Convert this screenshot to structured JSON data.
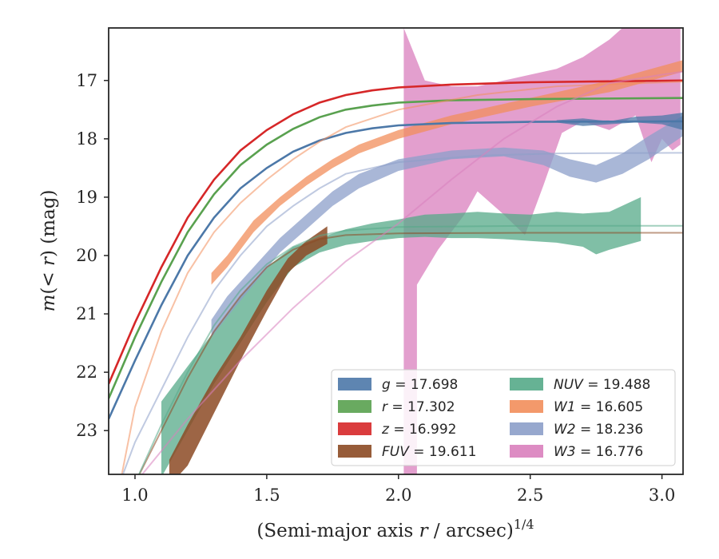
{
  "chart_data": {
    "type": "line",
    "xlabel": "(Semi-major axis r / arcsec)",
    "xlabel_italic": "r",
    "xlabel_exponent": "1/4",
    "ylabel": "m(< r) (mag)",
    "xlim": [
      0.9,
      3.08
    ],
    "ylim": [
      23.75,
      16.1
    ],
    "y_inverted": true,
    "xticks": [
      1.0,
      1.5,
      2.0,
      2.5,
      3.0
    ],
    "xtick_labels": [
      "1.0",
      "1.5",
      "2.0",
      "2.5",
      "3.0"
    ],
    "yticks": [
      17,
      18,
      19,
      20,
      21,
      22,
      23
    ],
    "ytick_labels": [
      "17",
      "18",
      "19",
      "20",
      "21",
      "22",
      "23"
    ],
    "grid": false,
    "legend_position": "bottom-right",
    "series": [
      {
        "band": "g",
        "legend": "g = 17.698",
        "color": "#4c78a8",
        "total_mag": 17.698,
        "model": [
          [
            0.9,
            22.8
          ],
          [
            1.0,
            21.8
          ],
          [
            1.1,
            20.85
          ],
          [
            1.2,
            20.0
          ],
          [
            1.3,
            19.35
          ],
          [
            1.4,
            18.85
          ],
          [
            1.5,
            18.5
          ],
          [
            1.6,
            18.22
          ],
          [
            1.7,
            18.03
          ],
          [
            1.8,
            17.9
          ],
          [
            1.9,
            17.82
          ],
          [
            2.0,
            17.77
          ],
          [
            2.2,
            17.73
          ],
          [
            2.5,
            17.71
          ],
          [
            3.08,
            17.7
          ]
        ],
        "band_lo": [
          [
            2.6,
            17.68
          ],
          [
            2.7,
            17.65
          ],
          [
            2.8,
            17.7
          ],
          [
            2.9,
            17.62
          ],
          [
            3.0,
            17.6
          ],
          [
            3.08,
            17.55
          ]
        ],
        "band_hi": [
          [
            2.6,
            17.72
          ],
          [
            2.7,
            17.78
          ],
          [
            2.8,
            17.75
          ],
          [
            2.9,
            17.72
          ],
          [
            3.0,
            17.75
          ],
          [
            3.08,
            17.85
          ]
        ]
      },
      {
        "band": "r",
        "legend": "r = 17.302",
        "color": "#59a14f",
        "total_mag": 17.302,
        "model": [
          [
            0.9,
            22.45
          ],
          [
            1.0,
            21.4
          ],
          [
            1.1,
            20.45
          ],
          [
            1.2,
            19.6
          ],
          [
            1.3,
            18.95
          ],
          [
            1.4,
            18.45
          ],
          [
            1.5,
            18.1
          ],
          [
            1.6,
            17.83
          ],
          [
            1.7,
            17.63
          ],
          [
            1.8,
            17.5
          ],
          [
            1.9,
            17.43
          ],
          [
            2.0,
            17.38
          ],
          [
            2.2,
            17.34
          ],
          [
            2.5,
            17.32
          ],
          [
            3.08,
            17.3
          ]
        ]
      },
      {
        "band": "z",
        "legend": "z = 16.992",
        "color": "#d62728",
        "total_mag": 16.992,
        "model": [
          [
            0.9,
            22.2
          ],
          [
            1.0,
            21.15
          ],
          [
            1.1,
            20.2
          ],
          [
            1.2,
            19.35
          ],
          [
            1.3,
            18.7
          ],
          [
            1.4,
            18.2
          ],
          [
            1.5,
            17.85
          ],
          [
            1.6,
            17.58
          ],
          [
            1.7,
            17.38
          ],
          [
            1.8,
            17.25
          ],
          [
            1.9,
            17.17
          ],
          [
            2.0,
            17.12
          ],
          [
            2.2,
            17.07
          ],
          [
            2.5,
            17.03
          ],
          [
            3.08,
            17.0
          ]
        ]
      },
      {
        "band": "FUV",
        "legend": "FUV = 19.611",
        "color": "#8c4a24",
        "total_mag": 19.611,
        "model": [
          [
            1.0,
            23.9
          ],
          [
            1.1,
            23.0
          ],
          [
            1.2,
            22.1
          ],
          [
            1.3,
            21.3
          ],
          [
            1.4,
            20.7
          ],
          [
            1.5,
            20.2
          ],
          [
            1.6,
            19.9
          ],
          [
            1.7,
            19.72
          ],
          [
            1.8,
            19.65
          ],
          [
            2.0,
            19.62
          ],
          [
            2.5,
            19.61
          ],
          [
            3.08,
            19.61
          ]
        ],
        "band_lo": [
          [
            1.13,
            23.5
          ],
          [
            1.2,
            22.9
          ],
          [
            1.3,
            22.1
          ],
          [
            1.4,
            21.4
          ],
          [
            1.5,
            20.6
          ],
          [
            1.58,
            20.05
          ],
          [
            1.65,
            19.75
          ],
          [
            1.73,
            19.5
          ]
        ],
        "band_hi": [
          [
            1.13,
            23.95
          ],
          [
            1.2,
            23.6
          ],
          [
            1.3,
            22.7
          ],
          [
            1.4,
            21.8
          ],
          [
            1.5,
            20.95
          ],
          [
            1.58,
            20.3
          ],
          [
            1.65,
            20.0
          ],
          [
            1.73,
            19.8
          ]
        ]
      },
      {
        "band": "NUV",
        "legend": "NUV = 19.488",
        "color": "#55aa88",
        "total_mag": 19.488,
        "model": [
          [
            1.0,
            23.9
          ],
          [
            1.1,
            22.9
          ],
          [
            1.2,
            22.0
          ],
          [
            1.3,
            21.2
          ],
          [
            1.4,
            20.6
          ],
          [
            1.5,
            20.15
          ],
          [
            1.6,
            19.85
          ],
          [
            1.7,
            19.66
          ],
          [
            1.8,
            19.57
          ],
          [
            2.0,
            19.51
          ],
          [
            2.5,
            19.49
          ],
          [
            3.08,
            19.49
          ]
        ],
        "band_lo": [
          [
            1.1,
            22.5
          ],
          [
            1.2,
            21.9
          ],
          [
            1.3,
            21.3
          ],
          [
            1.4,
            20.7
          ],
          [
            1.5,
            20.2
          ],
          [
            1.6,
            19.85
          ],
          [
            1.7,
            19.7
          ],
          [
            1.8,
            19.55
          ],
          [
            1.9,
            19.45
          ],
          [
            2.0,
            19.38
          ],
          [
            2.1,
            19.3
          ],
          [
            2.2,
            19.28
          ],
          [
            2.3,
            19.25
          ],
          [
            2.4,
            19.28
          ],
          [
            2.5,
            19.3
          ],
          [
            2.6,
            19.25
          ],
          [
            2.7,
            19.28
          ],
          [
            2.8,
            19.25
          ],
          [
            2.92,
            19.0
          ]
        ],
        "band_hi": [
          [
            1.1,
            23.8
          ],
          [
            1.2,
            23.0
          ],
          [
            1.3,
            22.2
          ],
          [
            1.4,
            21.5
          ],
          [
            1.5,
            20.8
          ],
          [
            1.6,
            20.2
          ],
          [
            1.7,
            19.95
          ],
          [
            1.8,
            19.82
          ],
          [
            1.9,
            19.75
          ],
          [
            2.0,
            19.7
          ],
          [
            2.1,
            19.68
          ],
          [
            2.2,
            19.7
          ],
          [
            2.3,
            19.7
          ],
          [
            2.4,
            19.72
          ],
          [
            2.5,
            19.75
          ],
          [
            2.6,
            19.78
          ],
          [
            2.7,
            19.85
          ],
          [
            2.75,
            19.98
          ],
          [
            2.8,
            19.9
          ],
          [
            2.92,
            19.75
          ]
        ]
      },
      {
        "band": "W1",
        "legend": "W1 = 16.605",
        "color": "#f28e5b",
        "total_mag": 16.605,
        "model": [
          [
            0.95,
            23.75
          ],
          [
            1.0,
            22.6
          ],
          [
            1.1,
            21.3
          ],
          [
            1.2,
            20.3
          ],
          [
            1.3,
            19.6
          ],
          [
            1.4,
            19.1
          ],
          [
            1.5,
            18.7
          ],
          [
            1.6,
            18.35
          ],
          [
            1.7,
            18.05
          ],
          [
            1.8,
            17.8
          ],
          [
            2.0,
            17.5
          ],
          [
            2.3,
            17.25
          ],
          [
            2.6,
            17.1
          ],
          [
            3.08,
            17.02
          ]
        ],
        "band_lo": [
          [
            1.29,
            20.3
          ],
          [
            1.35,
            20.0
          ],
          [
            1.45,
            19.4
          ],
          [
            1.55,
            19.0
          ],
          [
            1.65,
            18.65
          ],
          [
            1.75,
            18.35
          ],
          [
            1.85,
            18.1
          ],
          [
            2.0,
            17.85
          ],
          [
            2.2,
            17.6
          ],
          [
            2.5,
            17.3
          ],
          [
            2.8,
            17.0
          ],
          [
            3.08,
            16.65
          ]
        ],
        "band_hi": [
          [
            1.29,
            20.5
          ],
          [
            1.35,
            20.2
          ],
          [
            1.45,
            19.6
          ],
          [
            1.55,
            19.15
          ],
          [
            1.65,
            18.8
          ],
          [
            1.75,
            18.5
          ],
          [
            1.85,
            18.25
          ],
          [
            2.0,
            18.0
          ],
          [
            2.2,
            17.75
          ],
          [
            2.5,
            17.45
          ],
          [
            2.8,
            17.2
          ],
          [
            3.08,
            16.85
          ]
        ]
      },
      {
        "band": "W2",
        "legend": "W2 = 18.236",
        "color": "#8c9fc9",
        "total_mag": 18.236,
        "model": [
          [
            0.95,
            23.8
          ],
          [
            1.0,
            23.2
          ],
          [
            1.1,
            22.3
          ],
          [
            1.2,
            21.4
          ],
          [
            1.3,
            20.6
          ],
          [
            1.4,
            20.0
          ],
          [
            1.5,
            19.5
          ],
          [
            1.6,
            19.15
          ],
          [
            1.7,
            18.85
          ],
          [
            1.8,
            18.6
          ],
          [
            2.0,
            18.4
          ],
          [
            2.3,
            18.29
          ],
          [
            2.6,
            18.25
          ],
          [
            3.08,
            18.24
          ]
        ],
        "band_lo": [
          [
            1.29,
            21.1
          ],
          [
            1.35,
            20.7
          ],
          [
            1.45,
            20.2
          ],
          [
            1.55,
            19.7
          ],
          [
            1.65,
            19.3
          ],
          [
            1.75,
            18.9
          ],
          [
            1.85,
            18.6
          ],
          [
            2.0,
            18.35
          ],
          [
            2.2,
            18.2
          ],
          [
            2.4,
            18.15
          ],
          [
            2.55,
            18.2
          ],
          [
            2.65,
            18.35
          ],
          [
            2.75,
            18.45
          ],
          [
            2.85,
            18.25
          ],
          [
            2.95,
            17.95
          ],
          [
            3.08,
            17.6
          ]
        ],
        "band_hi": [
          [
            1.29,
            21.4
          ],
          [
            1.35,
            21.05
          ],
          [
            1.45,
            20.5
          ],
          [
            1.55,
            19.95
          ],
          [
            1.65,
            19.55
          ],
          [
            1.75,
            19.15
          ],
          [
            1.85,
            18.85
          ],
          [
            2.0,
            18.55
          ],
          [
            2.2,
            18.35
          ],
          [
            2.4,
            18.3
          ],
          [
            2.55,
            18.45
          ],
          [
            2.65,
            18.65
          ],
          [
            2.75,
            18.75
          ],
          [
            2.85,
            18.6
          ],
          [
            2.95,
            18.35
          ],
          [
            3.08,
            17.95
          ]
        ]
      },
      {
        "band": "W3",
        "legend": "W3 = 16.776",
        "color": "#d97fbd",
        "total_mag": 16.776,
        "model": [
          [
            1.0,
            23.9
          ],
          [
            1.2,
            22.8
          ],
          [
            1.4,
            21.8
          ],
          [
            1.6,
            20.9
          ],
          [
            1.8,
            20.1
          ],
          [
            2.0,
            19.45
          ],
          [
            2.2,
            18.7
          ],
          [
            2.4,
            18.0
          ],
          [
            2.6,
            17.45
          ],
          [
            2.8,
            17.05
          ],
          [
            3.0,
            16.9
          ],
          [
            3.08,
            16.85
          ]
        ],
        "band_lo": [
          [
            2.02,
            16.1
          ],
          [
            2.1,
            17.0
          ],
          [
            2.2,
            17.1
          ],
          [
            2.3,
            17.1
          ],
          [
            2.4,
            17.0
          ],
          [
            2.5,
            16.9
          ],
          [
            2.6,
            16.8
          ],
          [
            2.7,
            16.6
          ],
          [
            2.8,
            16.3
          ],
          [
            2.85,
            16.1
          ],
          [
            3.07,
            16.1
          ]
        ],
        "band_hi": [
          [
            2.02,
            23.8
          ],
          [
            2.07,
            23.8
          ],
          [
            2.07,
            20.5
          ],
          [
            2.15,
            19.9
          ],
          [
            2.25,
            19.3
          ],
          [
            2.3,
            18.9
          ],
          [
            2.4,
            19.3
          ],
          [
            2.48,
            19.65
          ],
          [
            2.55,
            18.8
          ],
          [
            2.62,
            17.9
          ],
          [
            2.7,
            17.7
          ],
          [
            2.8,
            17.85
          ],
          [
            2.9,
            17.6
          ],
          [
            2.96,
            18.4
          ],
          [
            3.0,
            18.0
          ],
          [
            3.04,
            18.2
          ],
          [
            3.07,
            18.1
          ]
        ]
      }
    ],
    "legend_left": [
      {
        "prefix": "g",
        "value": " = 17.698",
        "color": "#4c78a8"
      },
      {
        "prefix": "r",
        "value": " = 17.302",
        "color": "#59a14f"
      },
      {
        "prefix": "z",
        "value": " = 16.992",
        "color": "#d62728"
      },
      {
        "prefix": "FUV",
        "value": " = 19.611",
        "color": "#8c4a24"
      }
    ],
    "legend_right": [
      {
        "prefix": "NUV",
        "value": " = 19.488",
        "color": "#55aa88"
      },
      {
        "prefix": "W1",
        "value": " = 16.605",
        "color": "#f28e5b"
      },
      {
        "prefix": "W2",
        "value": " = 18.236",
        "color": "#8c9fc9"
      },
      {
        "prefix": "W3",
        "value": " = 16.776",
        "color": "#d97fbd"
      }
    ]
  }
}
